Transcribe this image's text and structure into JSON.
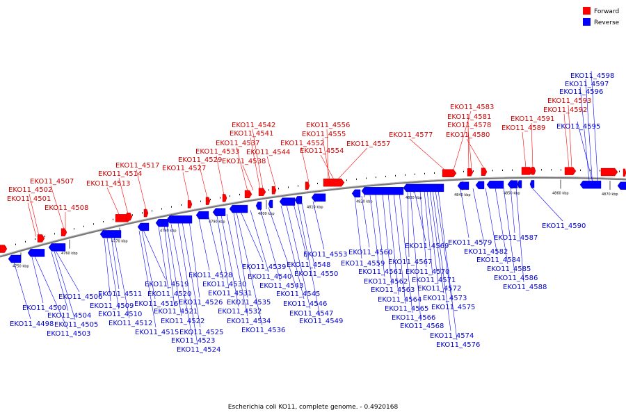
{
  "legend": {
    "forward": {
      "label": "Forward",
      "color": "#ff0000"
    },
    "reverse": {
      "label": "Reverse",
      "color": "#0000ff"
    }
  },
  "caption": "Escherichia coli KO11, complete genome. - 0.4920168",
  "scale_ticks": [
    "4750 kbp",
    "4760 kbp",
    "4770 kbp",
    "4780 kbp",
    "4790 kbp",
    "4800 kbp",
    "4810 kbp",
    "4820 kbp",
    "4830 kbp",
    "4840 kbp",
    "4850 kbp",
    "4860 kbp",
    "4870 kbp"
  ],
  "forward_genes": [
    "EKO11_4501",
    "EKO11_4502",
    "EKO11_4507",
    "EKO11_4508",
    "EKO11_4513",
    "EKO11_4514",
    "EKO11_4517",
    "EKO11_4527",
    "EKO11_4529",
    "EKO11_4533",
    "EKO11_4537",
    "EKO11_4538",
    "EKO11_4541",
    "EKO11_4542",
    "EKO11_4544",
    "EKO11_4552",
    "EKO11_4554",
    "EKO11_4555",
    "EKO11_4556",
    "EKO11_4557",
    "EKO11_4577",
    "EKO11_4578",
    "EKO11_4580",
    "EKO11_4581",
    "EKO11_4583",
    "EKO11_4589",
    "EKO11_4591",
    "EKO11_4592",
    "EKO11_4593"
  ],
  "reverse_genes": [
    "EKO11_4498",
    "EKO11_4500",
    "EKO11_4503",
    "EKO11_4504",
    "EKO11_4505",
    "EKO11_4506",
    "EKO11_4509",
    "EKO11_4510",
    "EKO11_4511",
    "EKO11_4512",
    "EKO11_4515",
    "EKO11_4516",
    "EKO11_4519",
    "EKO11_4520",
    "EKO11_4521",
    "EKO11_4522",
    "EKO11_4523",
    "EKO11_4524",
    "EKO11_4525",
    "EKO11_4526",
    "EKO11_4528",
    "EKO11_4530",
    "EKO11_4531",
    "EKO11_4532",
    "EKO11_4534",
    "EKO11_4535",
    "EKO11_4536",
    "EKO11_4539",
    "EKO11_4540",
    "EKO11_4543",
    "EKO11_4545",
    "EKO11_4546",
    "EKO11_4547",
    "EKO11_4548",
    "EKO11_4549",
    "EKO11_4550",
    "EKO11_4553",
    "EKO11_4559",
    "EKO11_4560",
    "EKO11_4561",
    "EKO11_4562",
    "EKO11_4563",
    "EKO11_4564",
    "EKO11_4565",
    "EKO11_4566",
    "EKO11_4567",
    "EKO11_4568",
    "EKO11_4569",
    "EKO11_4570",
    "EKO11_4571",
    "EKO11_4572",
    "EKO11_4573",
    "EKO11_4574",
    "EKO11_4575",
    "EKO11_4576",
    "EKO11_4579",
    "EKO11_4582",
    "EKO11_4584",
    "EKO11_4585",
    "EKO11_4586",
    "EKO11_4587",
    "EKO11_4588",
    "EKO11_4590",
    "EKO11_4595",
    "EKO11_4596",
    "EKO11_4597",
    "EKO11_4598"
  ]
}
